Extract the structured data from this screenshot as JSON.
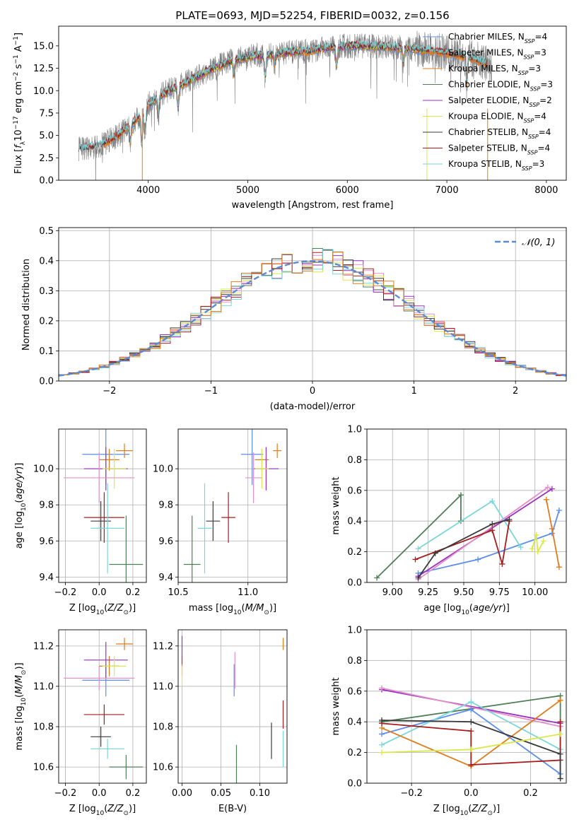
{
  "colors": {
    "Chabrier MILES": "#5b8def",
    "Salpeter MILES": "#e07b1a",
    "Kroupa MILES": "#e07b1a",
    "Chabrier ELODIE": "#4f7f57",
    "Salpeter ELODIE": "#9b2fbf",
    "Kroupa ELODIE": "#d9e84a",
    "Chabrier STELIB": "#3a3a3a",
    "Salpeter STELIB": "#a81c1c",
    "Kroupa STELIB": "#79d6d9",
    "pink": "#e38fc8",
    "grid": "#b0b0b0",
    "data_spectrum": "#808080",
    "normal_curve": "#5b8ad6"
  },
  "chart_data": [
    {
      "id": "spectrum",
      "type": "line",
      "title": "PLATE=0693, MJD=52254, FIBERID=0032, z=0.156",
      "xlabel": "wavelength [Angstrom, rest frame]",
      "ylabel": "Flux [f_λ 10^-17 erg cm^-2 s^-1 A^-1]",
      "xlim": [
        3100,
        8200
      ],
      "ylim": [
        0,
        17.2
      ],
      "xticks": [
        "4000",
        "5000",
        "6000",
        "7000",
        "8000"
      ],
      "yticks": [
        "0.0",
        "2.5",
        "5.0",
        "7.5",
        "10.0",
        "12.5",
        "15.0"
      ],
      "grid": false,
      "legend_position": "top-right",
      "legend": [
        {
          "label": "Chabrier MILES, N",
          "sub": "SSP",
          "tail": "=4"
        },
        {
          "label": "Salpeter MILES, N",
          "sub": "SSP",
          "tail": "=3"
        },
        {
          "label": "Kroupa MILES, N",
          "sub": "SSP",
          "tail": "=3"
        },
        {
          "label": "Chabrier ELODIE, N",
          "sub": "SSP",
          "tail": "=3"
        },
        {
          "label": "Salpeter ELODIE, N",
          "sub": "SSP",
          "tail": "=2"
        },
        {
          "label": "Kroupa ELODIE, N",
          "sub": "SSP",
          "tail": "=4"
        },
        {
          "label": "Chabrier STELIB, N",
          "sub": "SSP",
          "tail": "=4"
        },
        {
          "label": "Salpeter STELIB, N",
          "sub": "SSP",
          "tail": "=4"
        },
        {
          "label": "Kroupa STELIB, N",
          "sub": "SSP",
          "tail": "=3"
        }
      ],
      "continuum_x": [
        3300,
        3500,
        3700,
        3900,
        4000,
        4200,
        4400,
        4600,
        4800,
        5000,
        5200,
        5400,
        5600,
        5800,
        6000,
        6200,
        6400,
        6600,
        6800,
        7000,
        7200,
        7400
      ],
      "continuum_y": [
        3.5,
        3.8,
        5.0,
        7.0,
        8.5,
        10.0,
        11.0,
        12.2,
        13.2,
        13.8,
        14.0,
        14.3,
        14.4,
        14.8,
        15.0,
        15.0,
        14.9,
        14.7,
        14.5,
        14.2,
        13.8,
        13.0
      ]
    },
    {
      "id": "residuals",
      "type": "histogram",
      "xlabel": "(data-model)/error",
      "ylabel": "Normed distribution",
      "xlim": [
        -2.5,
        2.5
      ],
      "ylim": [
        0,
        0.51
      ],
      "xticks": [
        "−2",
        "−1",
        "0",
        "1",
        "2"
      ],
      "yticks": [
        "0.0",
        "0.1",
        "0.2",
        "0.3",
        "0.4",
        "0.5"
      ],
      "grid": true,
      "bin_width": 0.1,
      "legend": [
        {
          "label": "𝒩(0, 1)"
        }
      ],
      "legend_position": "top-right"
    },
    {
      "id": "age_vs_Z",
      "type": "scatter",
      "xlabel": "Z [log10(Z/Z⊙)]",
      "ylabel": "age  [log10(age/yr)]",
      "xlim": [
        -0.24,
        0.28
      ],
      "ylim": [
        9.37,
        10.22
      ],
      "xticks": [
        "−0.2",
        "0.0",
        "0.2"
      ],
      "yticks": [
        "9.4",
        "9.6",
        "9.8",
        "10.0"
      ],
      "grid": true,
      "points": [
        {
          "model": "Chabrier MILES",
          "x": 0.04,
          "xerr": 0.14,
          "y": 10.08,
          "yerr": 0.17
        },
        {
          "model": "Salpeter MILES",
          "x": 0.15,
          "xerr": 0.05,
          "y": 10.1,
          "yerr": 0.04
        },
        {
          "model": "Kroupa MILES",
          "x": 0.06,
          "xerr": 0.06,
          "y": 10.05,
          "yerr": 0.06
        },
        {
          "model": "Chabrier ELODIE",
          "x": 0.16,
          "xerr": 0.1,
          "y": 9.47,
          "yerr": 0.27
        },
        {
          "model": "Salpeter ELODIE",
          "x": 0.04,
          "xerr": 0.13,
          "y": 10.0,
          "yerr": 0.12
        },
        {
          "model": "Kroupa ELODIE",
          "x": 0.09,
          "xerr": 0.07,
          "y": 10.0,
          "yerr": 0.11
        },
        {
          "model": "Chabrier STELIB",
          "x": 0.01,
          "xerr": 0.06,
          "y": 9.71,
          "yerr": 0.11
        },
        {
          "model": "Salpeter STELIB",
          "x": 0.03,
          "xerr": 0.12,
          "y": 9.73,
          "yerr": 0.14
        },
        {
          "model": "Kroupa STELIB",
          "x": 0.05,
          "xerr": 0.1,
          "y": 9.67,
          "yerr": 0.25
        },
        {
          "model": "pink",
          "x": 0.0,
          "xerr": 0.21,
          "y": 9.95,
          "yerr": 0.14
        }
      ]
    },
    {
      "id": "age_vs_mass",
      "type": "scatter",
      "xlabel": "mass [log10(M/M⊙)]",
      "ylabel": "",
      "xlim": [
        10.5,
        11.28
      ],
      "ylim": [
        9.37,
        10.22
      ],
      "xticks": [
        "10.5",
        "11.0"
      ],
      "yticks": [
        "9.4",
        "9.6",
        "9.8",
        "10.0"
      ],
      "grid": true,
      "points": [
        {
          "model": "Chabrier MILES",
          "x": 11.03,
          "xerr": 0.08,
          "y": 10.08,
          "yerr": 0.17
        },
        {
          "model": "Salpeter MILES",
          "x": 11.21,
          "xerr": 0.03,
          "y": 10.1,
          "yerr": 0.04
        },
        {
          "model": "Kroupa MILES",
          "x": 11.1,
          "xerr": 0.05,
          "y": 10.05,
          "yerr": 0.06
        },
        {
          "model": "Chabrier ELODIE",
          "x": 10.6,
          "xerr": 0.06,
          "y": 9.47,
          "yerr": 0.27
        },
        {
          "model": "Salpeter ELODIE",
          "x": 11.13,
          "xerr": 0.09,
          "y": 10.0,
          "yerr": 0.12
        },
        {
          "model": "Kroupa ELODIE",
          "x": 11.1,
          "xerr": 0.05,
          "y": 10.0,
          "yerr": 0.11
        },
        {
          "model": "Chabrier STELIB",
          "x": 10.75,
          "xerr": 0.05,
          "y": 9.71,
          "yerr": 0.11
        },
        {
          "model": "Salpeter STELIB",
          "x": 10.86,
          "xerr": 0.05,
          "y": 9.73,
          "yerr": 0.14
        },
        {
          "model": "Kroupa STELIB",
          "x": 10.69,
          "xerr": 0.05,
          "y": 9.67,
          "yerr": 0.25
        },
        {
          "model": "pink",
          "x": 11.04,
          "xerr": 0.06,
          "y": 9.95,
          "yerr": 0.14
        }
      ]
    },
    {
      "id": "weight_vs_age",
      "type": "line",
      "xlabel": "age  [log10(age/yr)]",
      "ylabel": "mass weight",
      "xlim": [
        8.82,
        10.22
      ],
      "ylim": [
        0,
        1
      ],
      "xticks": [
        "9.00",
        "9.25",
        "9.50",
        "9.75",
        "10.00"
      ],
      "yticks": [
        "0.0",
        "0.2",
        "0.4",
        "0.6",
        "0.8",
        "1.0"
      ],
      "grid": true,
      "series": [
        {
          "model": "Chabrier ELODIE",
          "x": [
            8.89,
            9.48,
            9.48
          ],
          "y": [
            0.03,
            0.57,
            0.4
          ]
        },
        {
          "model": "Chabrier MILES",
          "x": [
            9.18,
            9.6,
            10.12,
            10.17
          ],
          "y": [
            0.06,
            0.15,
            0.32,
            0.47
          ]
        },
        {
          "model": "Salpeter ELODIE",
          "x": [
            9.18,
            10.12
          ],
          "y": [
            0.04,
            0.61
          ]
        },
        {
          "model": "pink",
          "x": [
            9.18,
            10.09
          ],
          "y": [
            0.02,
            0.62
          ]
        },
        {
          "model": "Kroupa STELIB",
          "x": [
            9.18,
            9.7,
            9.9
          ],
          "y": [
            0.22,
            0.53,
            0.23
          ]
        },
        {
          "model": "Salpeter STELIB",
          "x": [
            9.16,
            9.7,
            9.77,
            9.82
          ],
          "y": [
            0.15,
            0.34,
            0.12,
            0.4
          ]
        },
        {
          "model": "Chabrier STELIB",
          "x": [
            9.18,
            9.3,
            9.7,
            9.82
          ],
          "y": [
            0.03,
            0.19,
            0.38,
            0.41
          ]
        },
        {
          "model": "Kroupa ELODIE",
          "x": [
            9.98,
            10.01,
            10.02,
            10.06
          ],
          "y": [
            0.22,
            0.31,
            0.2,
            0.27
          ]
        },
        {
          "model": "Salpeter MILES",
          "x": [
            10.08,
            10.12,
            10.17
          ],
          "y": [
            0.54,
            0.35,
            0.1
          ]
        }
      ]
    },
    {
      "id": "mass_vs_Z",
      "type": "scatter",
      "xlabel": "Z [log10(Z/Z⊙)]",
      "ylabel": "mass [log10(M/M⊙)]",
      "xlim": [
        -0.24,
        0.28
      ],
      "ylim": [
        10.52,
        11.28
      ],
      "xticks": [
        "−0.2",
        "0.0",
        "0.2"
      ],
      "yticks": [
        "10.6",
        "10.8",
        "11.0",
        "11.2"
      ],
      "grid": true,
      "points": [
        {
          "model": "Chabrier MILES",
          "x": 0.04,
          "xerr": 0.14,
          "y": 11.03,
          "yerr": 0.08
        },
        {
          "model": "Salpeter MILES",
          "x": 0.15,
          "xerr": 0.05,
          "y": 11.21,
          "yerr": 0.03
        },
        {
          "model": "Kroupa MILES",
          "x": 0.06,
          "xerr": 0.06,
          "y": 11.1,
          "yerr": 0.05
        },
        {
          "model": "Chabrier ELODIE",
          "x": 0.16,
          "xerr": 0.1,
          "y": 10.6,
          "yerr": 0.06
        },
        {
          "model": "Salpeter ELODIE",
          "x": 0.04,
          "xerr": 0.13,
          "y": 11.13,
          "yerr": 0.09
        },
        {
          "model": "Kroupa ELODIE",
          "x": 0.09,
          "xerr": 0.07,
          "y": 11.1,
          "yerr": 0.05
        },
        {
          "model": "Chabrier STELIB",
          "x": 0.01,
          "xerr": 0.06,
          "y": 10.75,
          "yerr": 0.05
        },
        {
          "model": "Salpeter STELIB",
          "x": 0.03,
          "xerr": 0.12,
          "y": 10.86,
          "yerr": 0.05
        },
        {
          "model": "Kroupa STELIB",
          "x": 0.05,
          "xerr": 0.1,
          "y": 10.69,
          "yerr": 0.05
        },
        {
          "model": "pink",
          "x": 0.0,
          "xerr": 0.21,
          "y": 11.04,
          "yerr": 0.06
        }
      ]
    },
    {
      "id": "mass_vs_ebv",
      "type": "scatter",
      "xlabel": "E(B-V)",
      "ylabel": "",
      "xlim": [
        -0.005,
        0.135
      ],
      "ylim": [
        10.52,
        11.28
      ],
      "xticks": [
        "0.00",
        "0.05",
        "0.10"
      ],
      "yticks": [
        "10.6",
        "10.8",
        "11.0",
        "11.2"
      ],
      "grid": true,
      "points": [
        {
          "model": "Chabrier MILES",
          "x": 0.067,
          "y": 11.03,
          "yerr": 0.08
        },
        {
          "model": "Salpeter MILES",
          "x": 0.13,
          "y": 11.21,
          "yerr": 0.03
        },
        {
          "model": "Kroupa MILES",
          "x": 0.0,
          "y": 11.1,
          "yerr": 0.05
        },
        {
          "model": "Chabrier ELODIE",
          "x": 0.07,
          "y": 10.6,
          "yerr": 0.11
        },
        {
          "model": "Salpeter ELODIE",
          "x": 0.0,
          "y": 11.18,
          "yerr": 0.07
        },
        {
          "model": "Kroupa ELODIE",
          "x": 0.0,
          "y": 11.05,
          "yerr": 0.05
        },
        {
          "model": "Chabrier STELIB",
          "x": 0.115,
          "y": 10.73,
          "yerr": 0.09
        },
        {
          "model": "Salpeter STELIB",
          "x": 0.13,
          "y": 10.86,
          "yerr": 0.07
        },
        {
          "model": "Kroupa STELIB",
          "x": 0.13,
          "y": 10.69,
          "yerr": 0.09
        },
        {
          "model": "pink",
          "x": 0.068,
          "y": 11.08,
          "yerr": 0.09
        }
      ]
    },
    {
      "id": "weight_vs_Z",
      "type": "line",
      "xlabel": "Z [log10(Z/Z⊙)]",
      "ylabel": "mass weight",
      "xlim": [
        -0.35,
        0.32
      ],
      "ylim": [
        0,
        1
      ],
      "xticks": [
        "−0.2",
        "0.0",
        "0.2"
      ],
      "yticks": [
        "0.0",
        "0.2",
        "0.4",
        "0.6",
        "0.8",
        "1.0"
      ],
      "grid": true,
      "series": [
        {
          "model": "Chabrier ELODIE",
          "x": [
            -0.3,
            0.3,
            0.3
          ],
          "y": [
            0.4,
            0.57,
            0.03
          ]
        },
        {
          "model": "Salpeter ELODIE",
          "x": [
            -0.3,
            0.3,
            0.3
          ],
          "y": [
            0.61,
            0.39,
            0.39
          ]
        },
        {
          "model": "pink",
          "x": [
            -0.3,
            0.3,
            0.3
          ],
          "y": [
            0.62,
            0.37,
            0.37
          ]
        },
        {
          "model": "Chabrier MILES",
          "x": [
            -0.3,
            0.0,
            0.3,
            0.3
          ],
          "y": [
            0.32,
            0.48,
            0.06,
            0.03
          ]
        },
        {
          "model": "Kroupa STELIB",
          "x": [
            -0.3,
            0.0,
            0.3
          ],
          "y": [
            0.25,
            0.53,
            0.22
          ]
        },
        {
          "model": "Salpeter MILES",
          "x": [
            -0.3,
            0.0,
            0.3
          ],
          "y": [
            0.36,
            0.11,
            0.54
          ]
        },
        {
          "model": "Salpeter STELIB",
          "x": [
            -0.3,
            0.0,
            0.0,
            0.3,
            0.3
          ],
          "y": [
            0.39,
            0.34,
            0.12,
            0.15,
            0.4
          ]
        },
        {
          "model": "Chabrier STELIB",
          "x": [
            -0.3,
            0.0,
            0.3,
            0.3
          ],
          "y": [
            0.41,
            0.4,
            0.19,
            0.03
          ]
        },
        {
          "model": "Kroupa ELODIE",
          "x": [
            -0.3,
            0.0,
            0.3
          ],
          "y": [
            0.2,
            0.22,
            0.32
          ]
        }
      ]
    }
  ]
}
